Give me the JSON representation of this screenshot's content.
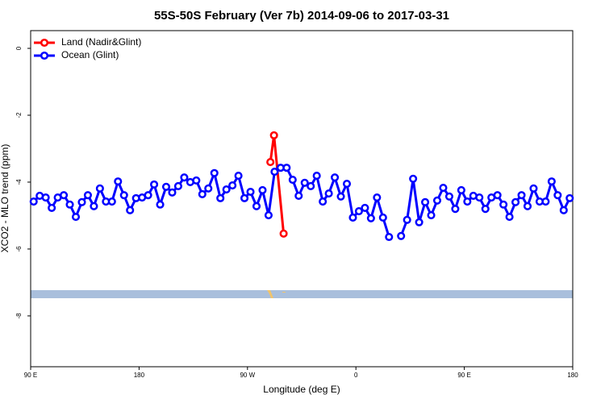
{
  "chart_data": {
    "type": "line",
    "title": "55S-50S February (Ver 7b)   2014-09-06 to 2017-03-31",
    "x_label": "Longitude (deg E)",
    "y_label": "XCO2 - MLO trend (ppm)",
    "xlim": [
      90,
      540
    ],
    "xticks": [
      {
        "value": 90,
        "label": "90 E"
      },
      {
        "value": 180,
        "label": "180"
      },
      {
        "value": 270,
        "label": "90 W"
      },
      {
        "value": 360,
        "label": "0"
      },
      {
        "value": 450,
        "label": "90 E"
      },
      {
        "value": 540,
        "label": "180"
      }
    ],
    "ylim": [
      -9.52,
      0.53
    ],
    "yticks": [
      0,
      -2,
      -4,
      -6,
      -8
    ],
    "legend": "top-left",
    "series": [
      {
        "name": "Land (Nadir&Glint)",
        "color": "#ff0000",
        "x": [
          289,
          292,
          300
        ],
        "values": [
          -3.4,
          -2.6,
          -5.54
        ]
      },
      {
        "name": "Ocean (Glint)",
        "color": "#0000ff",
        "x": [
          92.5,
          97.5,
          102.5,
          107.5,
          112.5,
          117.5,
          122.5,
          127.5,
          132.5,
          137.5,
          142.5,
          147.5,
          152.5,
          157.5,
          162.5,
          167.5,
          172.5,
          177.5,
          182.5,
          187.5,
          192.5,
          197.5,
          202.5,
          207.5,
          212.5,
          217.5,
          222.5,
          227.5,
          232.5,
          237.5,
          242.5,
          247.5,
          252.5,
          257.5,
          262.5,
          267.5,
          272.5,
          277.5,
          282.5,
          287.5,
          292.5,
          297.5,
          302.5,
          307.5,
          312.5,
          317.5,
          322.5,
          327.5,
          332.5,
          337.5,
          342.5,
          347.5,
          352.5,
          357.5,
          362.5,
          367.5,
          372.5,
          377.5,
          382.5,
          387.5,
          392.5,
          397.5,
          402.5,
          407.5,
          412.5,
          417.5,
          422.5,
          427.5,
          432.5,
          437.5,
          442.5,
          447.5,
          452.5,
          457.5,
          462.5,
          467.5,
          472.5,
          477.5,
          482.5,
          487.5,
          492.5,
          497.5,
          502.5,
          507.5,
          512.5,
          517.5,
          522.5,
          527.5,
          532.5,
          537.5
        ],
        "values": [
          -4.58,
          -4.41,
          -4.46,
          -4.77,
          -4.46,
          -4.39,
          -4.67,
          -5.04,
          -4.6,
          -4.39,
          -4.72,
          -4.19,
          -4.58,
          -4.58,
          -3.98,
          -4.39,
          -4.84,
          -4.48,
          -4.46,
          -4.39,
          -4.07,
          -4.67,
          -4.14,
          -4.31,
          -4.12,
          -3.86,
          -4.0,
          -3.95,
          -4.36,
          -4.19,
          -3.73,
          -4.48,
          -4.22,
          -4.1,
          -3.81,
          -4.48,
          -4.29,
          -4.72,
          -4.24,
          -4.99,
          -3.69,
          -3.57,
          -3.57,
          -3.93,
          -4.41,
          -4.02,
          -4.12,
          -3.81,
          -4.58,
          -4.34,
          -3.86,
          -4.43,
          -4.05,
          -5.06,
          -4.87,
          -4.77,
          -5.08,
          -4.46,
          -5.06,
          -5.64,
          null,
          -5.61,
          -5.13,
          -3.9,
          -5.2,
          -4.6,
          -4.99,
          -4.55,
          -4.17,
          -4.43,
          -4.8,
          -4.24,
          -4.58,
          -4.41,
          -4.46,
          -4.8,
          -4.46,
          -4.39,
          -4.67,
          -5.04,
          -4.6,
          -4.39,
          -4.72,
          -4.19,
          -4.58,
          -4.58,
          -3.98,
          -4.39,
          -4.84,
          -4.48
        ]
      }
    ]
  }
}
